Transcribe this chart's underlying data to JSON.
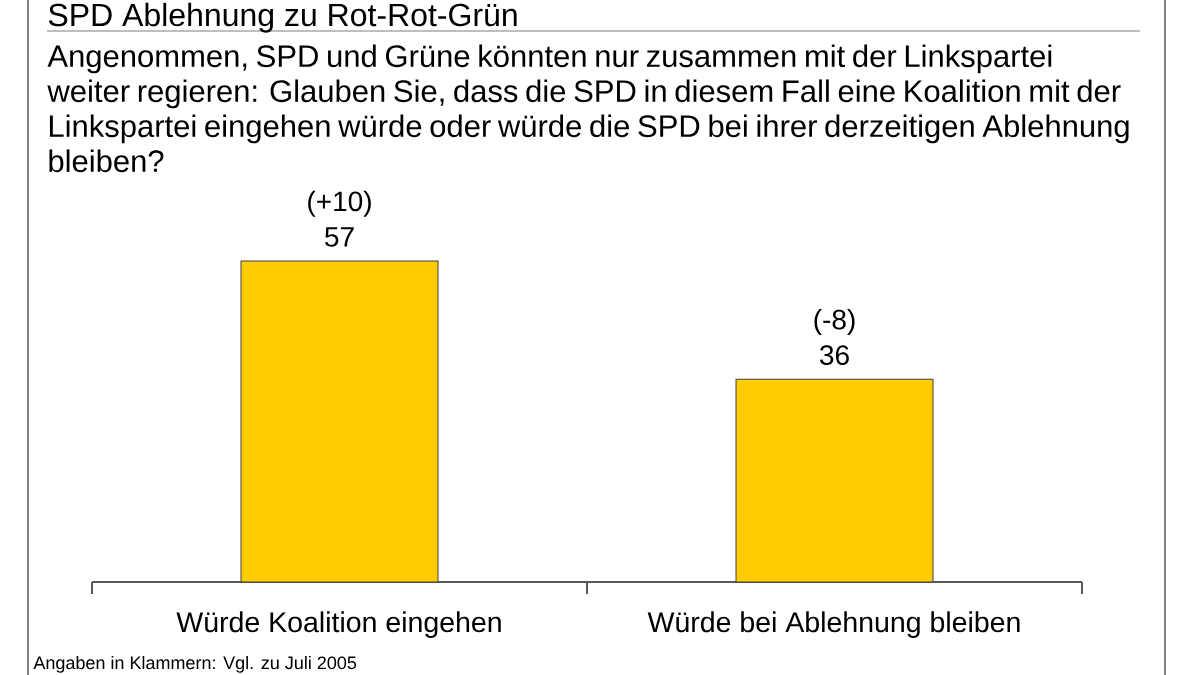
{
  "chart_data": {
    "type": "bar",
    "title": "SPD Ablehnung zu Rot-Rot-Grün",
    "subtitle": "Angenommen, SPD und Grüne könnten nur zusammen mit der Linkspartei weiter regieren: Glauben Sie, dass die SPD in diesem Fall eine Koalition mit der Linkspartei eingehen würde oder würde die SPD bei ihrer derzeitigen Ablehnung bleiben?",
    "categories": [
      "Würde Koalition eingehen",
      "Würde bei Ablehnung bleiben"
    ],
    "values": [
      57,
      36
    ],
    "color": "#ffcc00",
    "data_labels": true,
    "annotations": [
      {
        "text": "(+10)",
        "x": "Würde Koalition eingehen",
        "y": 57
      },
      {
        "text": "(-8)",
        "x": "Würde bei Ablehnung bleiben",
        "y": 36
      },
      "Angaben in Klammern: Vgl. zu Juli 2005"
    ]
  }
}
